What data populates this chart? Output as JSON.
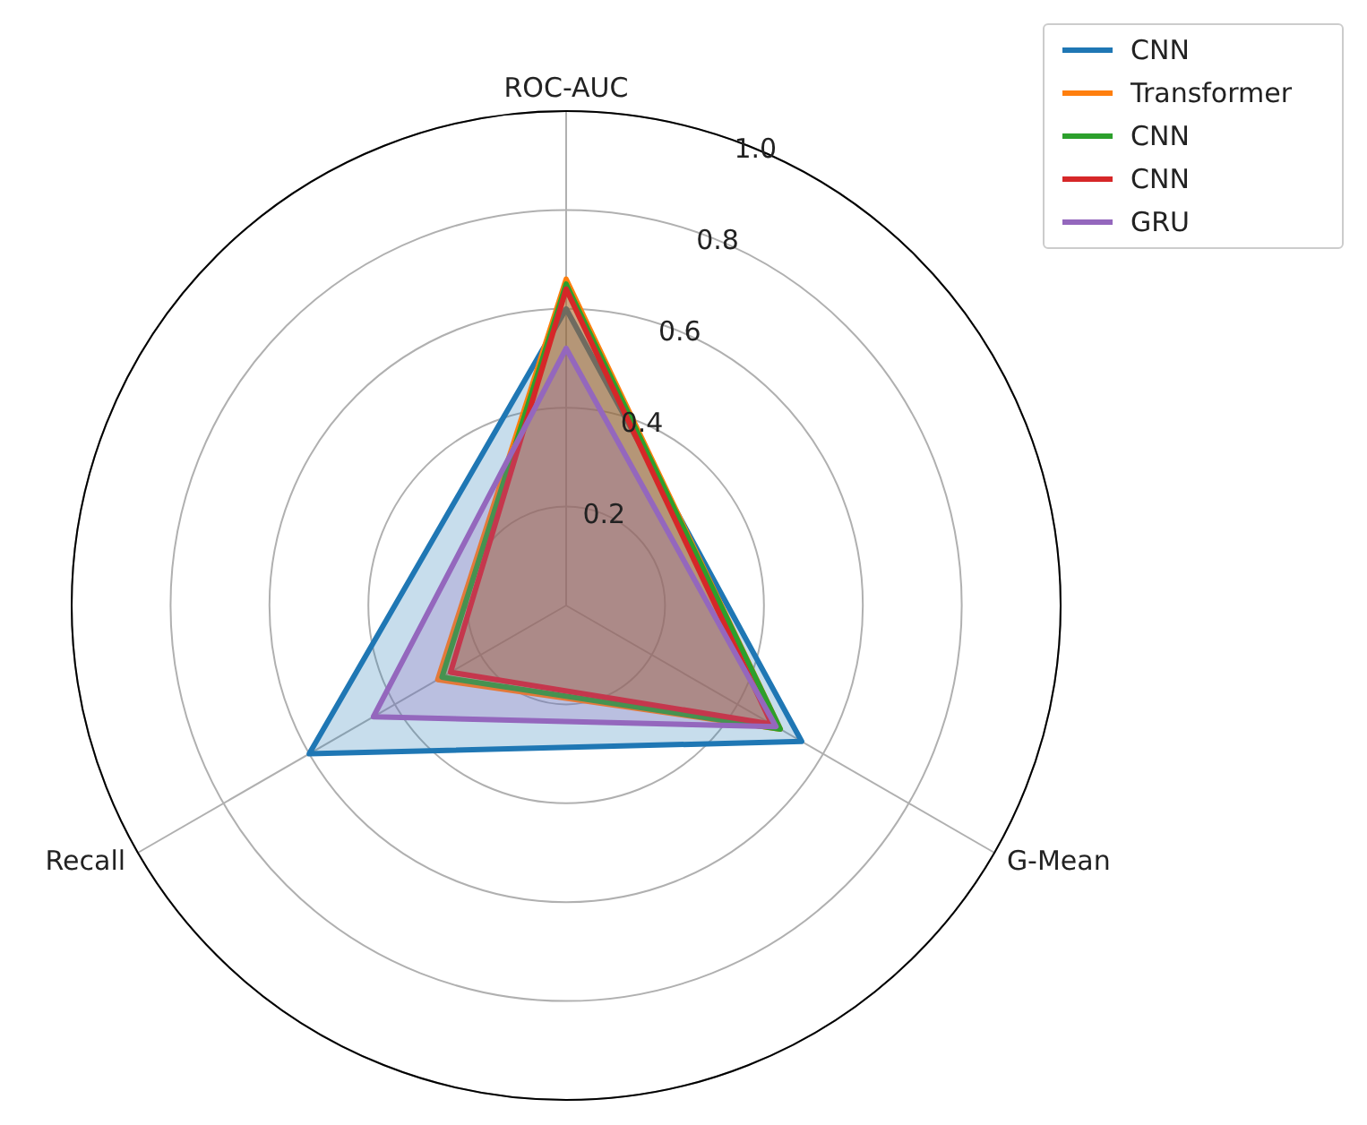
{
  "chart_data": {
    "type": "radar",
    "categories": [
      "ROC-AUC",
      "G-Mean",
      "Recall"
    ],
    "series": [
      {
        "name": "CNN",
        "color": "#1f77b4",
        "values": [
          0.6,
          0.55,
          0.6
        ]
      },
      {
        "name": "Transformer",
        "color": "#ff7f0e",
        "values": [
          0.66,
          0.5,
          0.3
        ]
      },
      {
        "name": "CNN",
        "color": "#2ca02c",
        "values": [
          0.65,
          0.5,
          0.29
        ]
      },
      {
        "name": "CNN",
        "color": "#d62728",
        "values": [
          0.64,
          0.48,
          0.27
        ]
      },
      {
        "name": "GRU",
        "color": "#9467bd",
        "values": [
          0.52,
          0.49,
          0.45
        ]
      }
    ],
    "ylim": [
      0,
      1
    ],
    "yticks": [
      0.2,
      0.4,
      0.6,
      0.8,
      {
        "value": 1,
        "label": "1.0"
      }
    ],
    "grid": true,
    "legend": "top right"
  }
}
